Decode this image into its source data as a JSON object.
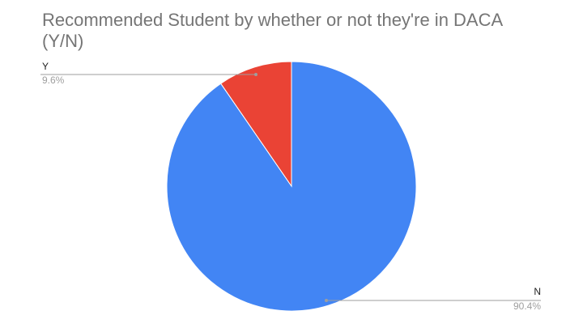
{
  "chart_data": {
    "type": "pie",
    "title": "Recommended Student by whether or not they're in DACA (Y/N)",
    "slices": [
      {
        "label": "Y",
        "value": 9.6,
        "display": "9.6%",
        "color": "#ea4335"
      },
      {
        "label": "N",
        "value": 90.4,
        "display": "90.4%",
        "color": "#4285f4"
      }
    ],
    "legend": "none",
    "label_style": "leader lines with name and percentage"
  }
}
